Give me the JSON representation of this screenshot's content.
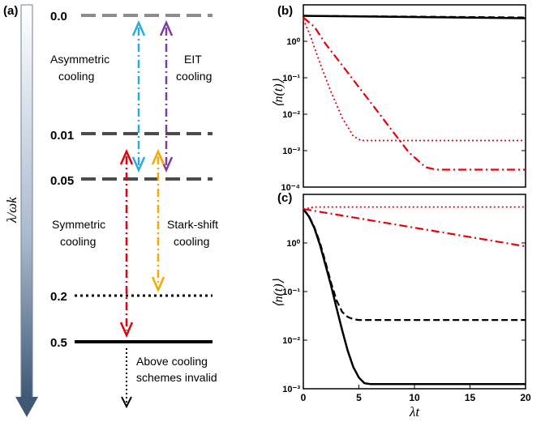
{
  "panel_a": {
    "label": "(a)",
    "axis_label": "λ/ωk",
    "levels": [
      {
        "label": "0.0",
        "value": 0.0,
        "style": "dashed-gray"
      },
      {
        "label": "0.01",
        "value": 0.01,
        "style": "dashed-dark"
      },
      {
        "label": "0.05",
        "value": 0.05,
        "style": "dashed-dark"
      },
      {
        "label": "0.2",
        "value": 0.2,
        "style": "dotted"
      },
      {
        "label": "0.5",
        "value": 0.5,
        "style": "solid"
      }
    ],
    "schemes": [
      {
        "text_lines": [
          "Asymmetric",
          "cooling"
        ],
        "color": "#29abe2",
        "from": 0.0,
        "to": 0.05
      },
      {
        "text_lines": [
          "EIT",
          "cooling"
        ],
        "color": "#7b3fa0",
        "from": 0.0,
        "to": 0.05
      },
      {
        "text_lines": [
          "Symmetric",
          "cooling"
        ],
        "color": "#e8000b",
        "from": 0.05,
        "to": 0.5
      },
      {
        "text_lines": [
          "Stark-shift",
          "cooling"
        ],
        "color": "#f5a800",
        "from": 0.05,
        "to": 0.2
      }
    ],
    "invalid_note_lines": [
      "Above cooling",
      "schemes invalid"
    ]
  },
  "chart_data": [
    {
      "panel": "(b)",
      "type": "line",
      "ylabel": "⟨n(t)⟩",
      "xlabel": "",
      "xlim": [
        0,
        20
      ],
      "ylim": [
        0.0001,
        10
      ],
      "y_scale": "log",
      "x_ticks": [],
      "y_ticks": [
        {
          "value": 0.0001,
          "label": "10⁻⁴"
        },
        {
          "value": 0.001,
          "label": "10⁻³"
        },
        {
          "value": 0.01,
          "label": "10⁻²"
        },
        {
          "value": 0.1,
          "label": "10⁻¹"
        },
        {
          "value": 1,
          "label": "10⁰"
        }
      ],
      "series": [
        {
          "style": "solid",
          "color": "#000000",
          "x": [
            0,
            20
          ],
          "y": [
            5.0,
            4.3
          ]
        },
        {
          "style": "dashed",
          "color": "#000000",
          "x": [
            0,
            20
          ],
          "y": [
            5.0,
            4.5
          ]
        },
        {
          "style": "dashdot",
          "color": "#e8000b",
          "x": [
            0,
            1,
            2,
            3.5,
            5,
            6.5,
            8,
            9.5,
            11,
            12,
            14,
            20
          ],
          "y": [
            4.5,
            2.5,
            0.85,
            0.22,
            0.055,
            0.014,
            0.0035,
            0.0009,
            0.00035,
            0.0003,
            0.0003,
            0.0003
          ]
        },
        {
          "style": "dotted",
          "color": "#e8000b",
          "x": [
            0,
            0.6,
            1.5,
            2.5,
            3.5,
            4.5,
            5.2,
            6,
            20
          ],
          "y": [
            4.0,
            1.5,
            0.25,
            0.04,
            0.008,
            0.0025,
            0.0019,
            0.0019,
            0.0019
          ]
        }
      ]
    },
    {
      "panel": "(c)",
      "type": "line",
      "ylabel": "⟨n(t)⟩",
      "xlabel": "λt",
      "xlim": [
        0,
        20
      ],
      "ylim": [
        0.001,
        10
      ],
      "y_scale": "log",
      "x_ticks": [
        0,
        5,
        10,
        15,
        20
      ],
      "y_ticks": [
        {
          "value": 0.001,
          "label": "10⁻³"
        },
        {
          "value": 0.01,
          "label": "10⁻²"
        },
        {
          "value": 0.1,
          "label": "10⁻¹"
        },
        {
          "value": 1,
          "label": "10⁰"
        }
      ],
      "series": [
        {
          "style": "solid",
          "color": "#000000",
          "x": [
            0,
            0.5,
            1,
            1.5,
            2,
            2.5,
            3,
            3.5,
            4,
            4.5,
            5,
            5.5,
            6,
            7,
            20
          ],
          "y": [
            5.0,
            3.5,
            2.0,
            0.9,
            0.35,
            0.13,
            0.045,
            0.016,
            0.006,
            0.0028,
            0.0017,
            0.0013,
            0.00125,
            0.00125,
            0.00125
          ]
        },
        {
          "style": "dashed",
          "color": "#000000",
          "x": [
            0,
            0.5,
            1,
            1.5,
            2,
            2.5,
            3,
            3.5,
            4,
            4.5,
            5,
            6,
            20
          ],
          "y": [
            5.0,
            3.6,
            2.1,
            1.0,
            0.4,
            0.15,
            0.065,
            0.038,
            0.03,
            0.027,
            0.026,
            0.026,
            0.026
          ]
        },
        {
          "style": "dashdot",
          "color": "#e8000b",
          "x": [
            0,
            20
          ],
          "y": [
            5.0,
            0.85
          ]
        },
        {
          "style": "dotted",
          "color": "#e8000b",
          "x": [
            0,
            1,
            20
          ],
          "y": [
            5.0,
            5.5,
            5.5
          ]
        }
      ]
    }
  ]
}
